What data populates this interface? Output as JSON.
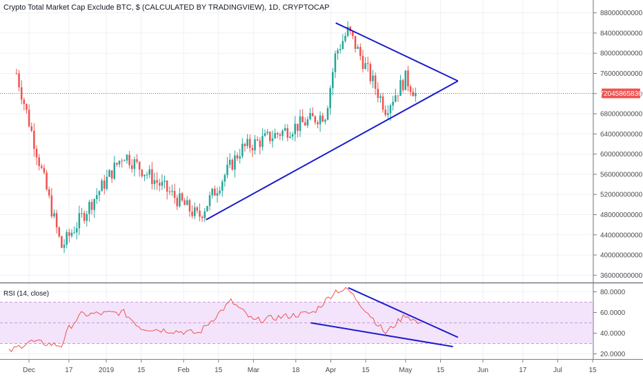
{
  "chart_data": [
    {
      "type": "candlestick",
      "title": "Crypto Total Market Cap Exclude BTC, $ (CALCULATED BY TRADINGVIEW), 1D, CRYPTOCAP",
      "x_tick_labels": [
        "Dec",
        "17",
        "2019",
        "15",
        "Feb",
        "15",
        "Mar",
        "18",
        "Apr",
        "15",
        "May",
        "15",
        "Jun",
        "17",
        "Jul",
        "15"
      ],
      "y_tick_labels": [
        "36000000000",
        "40000000000",
        "44000000000",
        "48000000000",
        "52000000000",
        "56000000000",
        "60000000000",
        "64000000000",
        "68000000000",
        "72000000000",
        "76000000000",
        "80000000000",
        "84000000000",
        "88000000000"
      ],
      "ylim": [
        34000000000,
        90000000000
      ],
      "last_price": 72045865836,
      "last_price_label": "72045865836",
      "colors": {
        "up": "#26a69a",
        "down": "#ef5350",
        "trendline": "#1a1acc",
        "price_line": "#ef5350"
      },
      "grid": true,
      "candle_count": 160,
      "key_points": [
        {
          "t": "2018-11-26",
          "value": 76000000000
        },
        {
          "t": "2018-12-14",
          "value": 41500000000
        },
        {
          "t": "2019-01-08",
          "value": 60000000000
        },
        {
          "t": "2019-02-07",
          "value": 47500000000
        },
        {
          "t": "2019-02-24",
          "value": 61000000000
        },
        {
          "t": "2019-03-30",
          "value": 68000000000
        },
        {
          "t": "2019-04-03",
          "value": 80000000000
        },
        {
          "t": "2019-04-08",
          "value": 84500000000
        },
        {
          "t": "2019-04-23",
          "value": 69000000000
        },
        {
          "t": "2019-05-01",
          "value": 75000000000
        },
        {
          "t": "2019-05-05",
          "value": 72045865836
        }
      ],
      "trendlines": [
        {
          "points": [
            {
              "t": "2019-02-10",
              "value": 47000000000
            },
            {
              "t": "2019-05-22",
              "value": 74500000000
            }
          ]
        },
        {
          "points": [
            {
              "t": "2019-04-03",
              "value": 86000000000
            },
            {
              "t": "2019-05-22",
              "value": 74500000000
            }
          ]
        }
      ]
    },
    {
      "type": "line",
      "label": "RSI (14, close)",
      "y_tick_labels": [
        "20.0000",
        "40.0000",
        "60.0000",
        "80.0000"
      ],
      "ylim": [
        15,
        87
      ],
      "bands": [
        30,
        50,
        70
      ],
      "colors": {
        "line": "#ef5350",
        "band_fill": "#f3e3fb",
        "band_line": "#c39bd3",
        "trendline": "#1a1acc"
      },
      "key_points": [
        {
          "t": "2018-11-23",
          "value": 22
        },
        {
          "t": "2018-12-01",
          "value": 32
        },
        {
          "t": "2018-12-14",
          "value": 28
        },
        {
          "t": "2018-12-17",
          "value": 45
        },
        {
          "t": "2018-12-22",
          "value": 58
        },
        {
          "t": "2019-01-08",
          "value": 60
        },
        {
          "t": "2019-01-15",
          "value": 45
        },
        {
          "t": "2019-02-07",
          "value": 40
        },
        {
          "t": "2019-02-20",
          "value": 71
        },
        {
          "t": "2019-03-01",
          "value": 52
        },
        {
          "t": "2019-03-25",
          "value": 60
        },
        {
          "t": "2019-04-03",
          "value": 81
        },
        {
          "t": "2019-04-08",
          "value": 82
        },
        {
          "t": "2019-04-18",
          "value": 54
        },
        {
          "t": "2019-04-23",
          "value": 40
        },
        {
          "t": "2019-05-01",
          "value": 58
        },
        {
          "t": "2019-05-07",
          "value": 48
        }
      ],
      "trendlines": [
        {
          "points": [
            {
              "t": "2019-03-24",
              "value": 50
            },
            {
              "t": "2019-05-20",
              "value": 27
            }
          ]
        },
        {
          "points": [
            {
              "t": "2019-04-08",
              "value": 84
            },
            {
              "t": "2019-05-22",
              "value": 36
            }
          ]
        }
      ]
    }
  ]
}
